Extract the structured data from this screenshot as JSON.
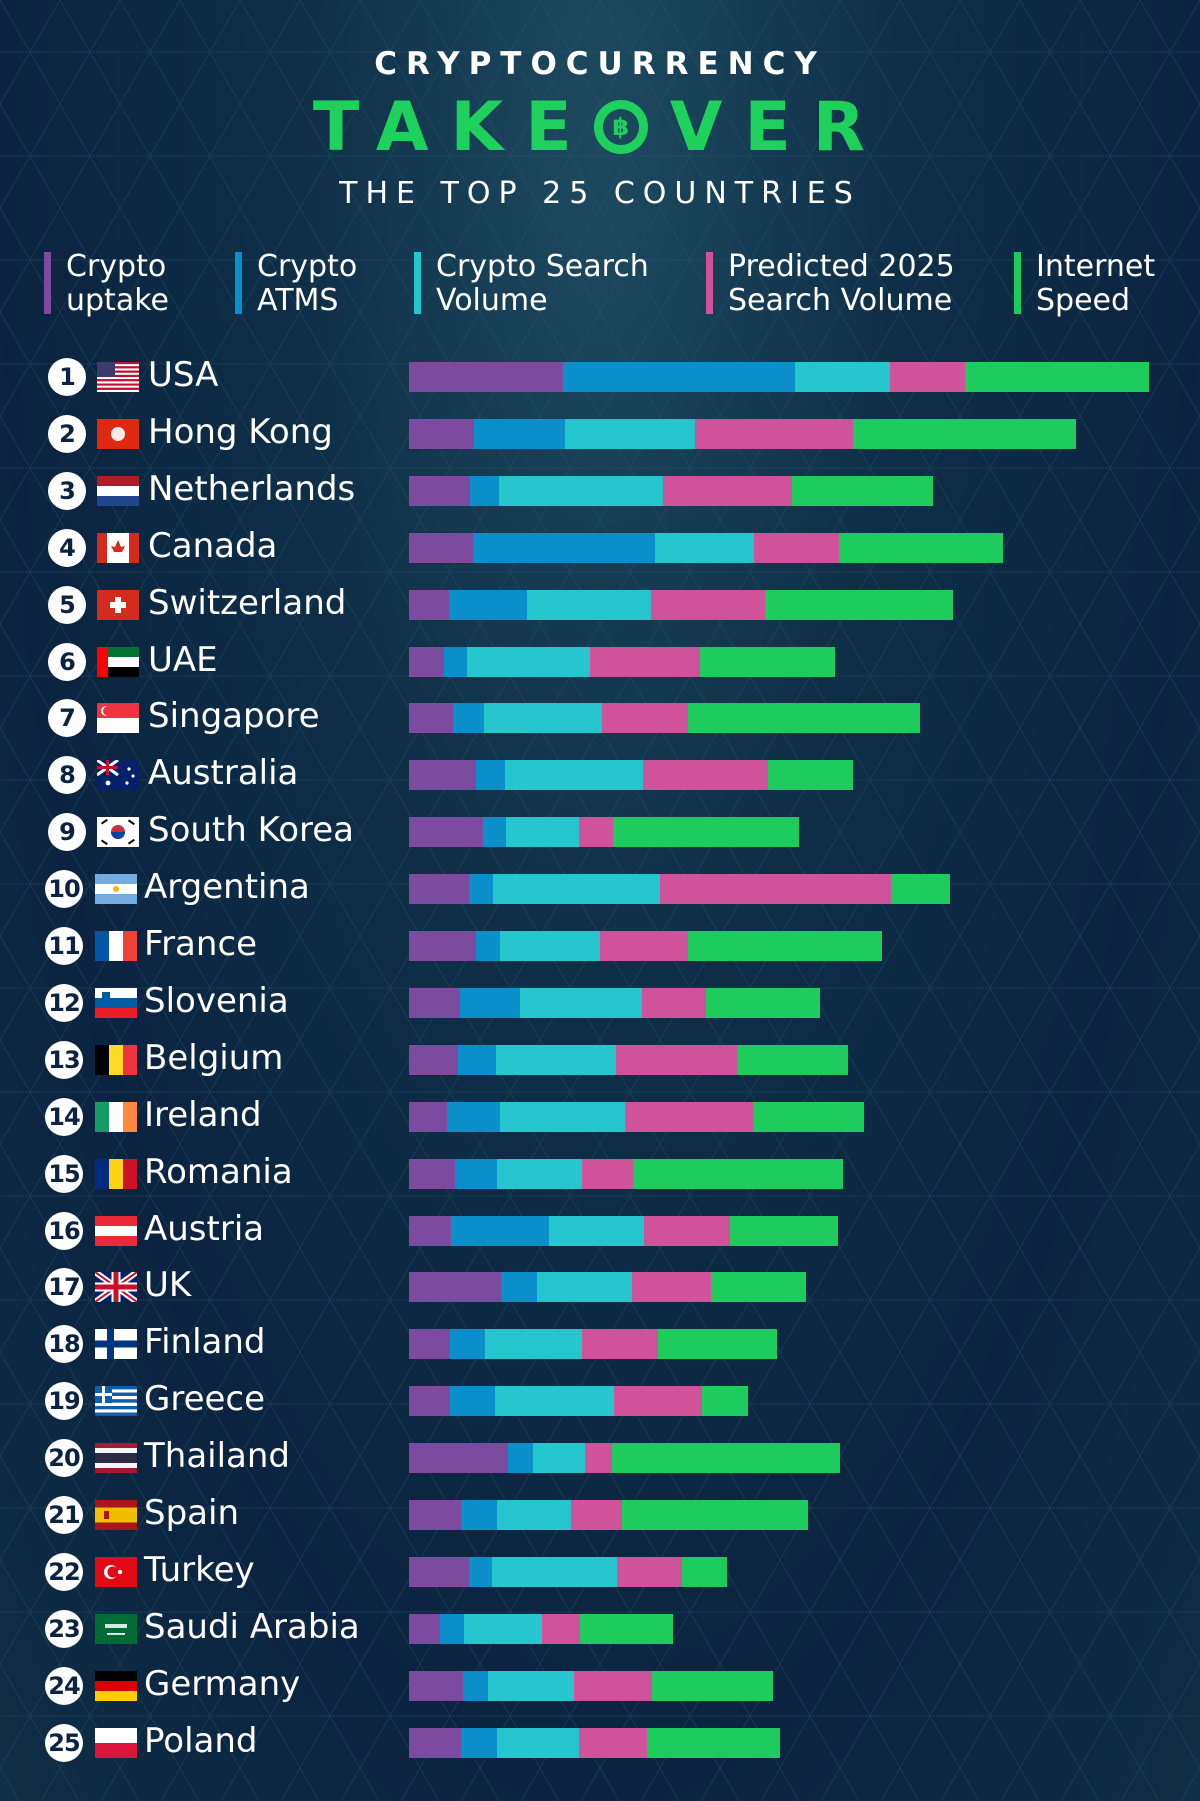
{
  "header": {
    "title_top": "CRYPTOCURRENCY",
    "title_main_left": "TAKE",
    "title_main_right": "VER",
    "coin_symbol": "฿",
    "subtitle": "THE TOP 25 COUNTRIES"
  },
  "legend": [
    {
      "label": "Crypto\nuptake",
      "color": "#7c4a9e"
    },
    {
      "label": "Crypto\nATMS",
      "color": "#0a8fca"
    },
    {
      "label": "Crypto Search\nVolume",
      "color": "#26c6cf"
    },
    {
      "label": "Predicted 2025\nSearch Volume",
      "color": "#cf529b"
    },
    {
      "label": "Internet\nSpeed",
      "color": "#1ecb5d"
    }
  ],
  "chart_data": {
    "type": "bar",
    "stacked": true,
    "orientation": "horizontal",
    "title": "CRYPTOCURRENCY TAKEOVER",
    "subtitle": "THE TOP 25 COUNTRIES",
    "categories": [
      "USA",
      "Hong Kong",
      "Netherlands",
      "Canada",
      "Switzerland",
      "UAE",
      "Singapore",
      "Australia",
      "South Korea",
      "Argentina",
      "France",
      "Slovenia",
      "Belgium",
      "Ireland",
      "Romania",
      "Austria",
      "UK",
      "Finland",
      "Greece",
      "Thailand",
      "Spain",
      "Turkey",
      "Saudi Arabia",
      "Germany",
      "Poland"
    ],
    "ranks": [
      "1",
      "2",
      "3",
      "4",
      "5",
      "6",
      "7",
      "8",
      "9",
      "10",
      "11",
      "12",
      "13",
      "14",
      "15",
      "16",
      "17",
      "18",
      "19",
      "20",
      "21",
      "22",
      "23",
      "24",
      "25"
    ],
    "flags": [
      "us",
      "hk",
      "nl",
      "ca",
      "ch",
      "ae",
      "sg",
      "au",
      "kr",
      "ar",
      "fr",
      "si",
      "be",
      "ie",
      "ro",
      "at",
      "uk",
      "fi",
      "gr",
      "th",
      "es",
      "tr",
      "sa",
      "de",
      "pl"
    ],
    "series": [
      {
        "name": "Crypto uptake",
        "values": [
          154,
          65,
          61,
          64,
          40,
          35,
          44,
          67,
          74,
          60,
          67,
          51,
          49,
          38,
          46,
          42,
          92,
          41,
          41,
          99,
          52,
          60,
          31,
          54,
          52
        ]
      },
      {
        "name": "Crypto ATMS",
        "values": [
          232,
          91,
          29,
          182,
          78,
          23,
          31,
          29,
          23,
          24,
          24,
          60,
          38,
          53,
          42,
          98,
          36,
          35,
          45,
          25,
          36,
          23,
          24,
          25,
          36
        ]
      },
      {
        "name": "Crypto Search Volume",
        "values": [
          95,
          130,
          164,
          99,
          124,
          123,
          118,
          138,
          73,
          167,
          100,
          122,
          120,
          125,
          85,
          95,
          95,
          97,
          119,
          52,
          74,
          125,
          78,
          86,
          82
        ]
      },
      {
        "name": "Predicted 2025 Search Volume",
        "values": [
          75,
          158,
          129,
          85,
          114,
          110,
          86,
          125,
          34,
          231,
          88,
          64,
          121,
          128,
          51,
          86,
          79,
          76,
          88,
          27,
          51,
          65,
          38,
          78,
          68
        ]
      },
      {
        "name": "Internet Speed",
        "values": [
          184,
          223,
          141,
          164,
          188,
          135,
          232,
          85,
          186,
          59,
          194,
          114,
          111,
          111,
          210,
          108,
          95,
          119,
          46,
          228,
          186,
          45,
          93,
          121,
          133
        ]
      }
    ],
    "grid": false,
    "legend_position": "top"
  }
}
